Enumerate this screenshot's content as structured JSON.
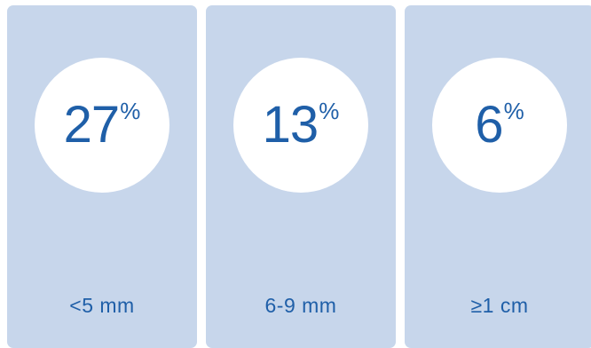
{
  "cards": [
    {
      "value": "27",
      "unit": "%",
      "label": "<5 mm"
    },
    {
      "value": "13",
      "unit": "%",
      "label": "6-9 mm"
    },
    {
      "value": "6",
      "unit": "%",
      "label": "≥1 cm"
    }
  ],
  "colors": {
    "card_background": "#c7d6eb",
    "circle_background": "#ffffff",
    "text": "#1f5fa8"
  }
}
